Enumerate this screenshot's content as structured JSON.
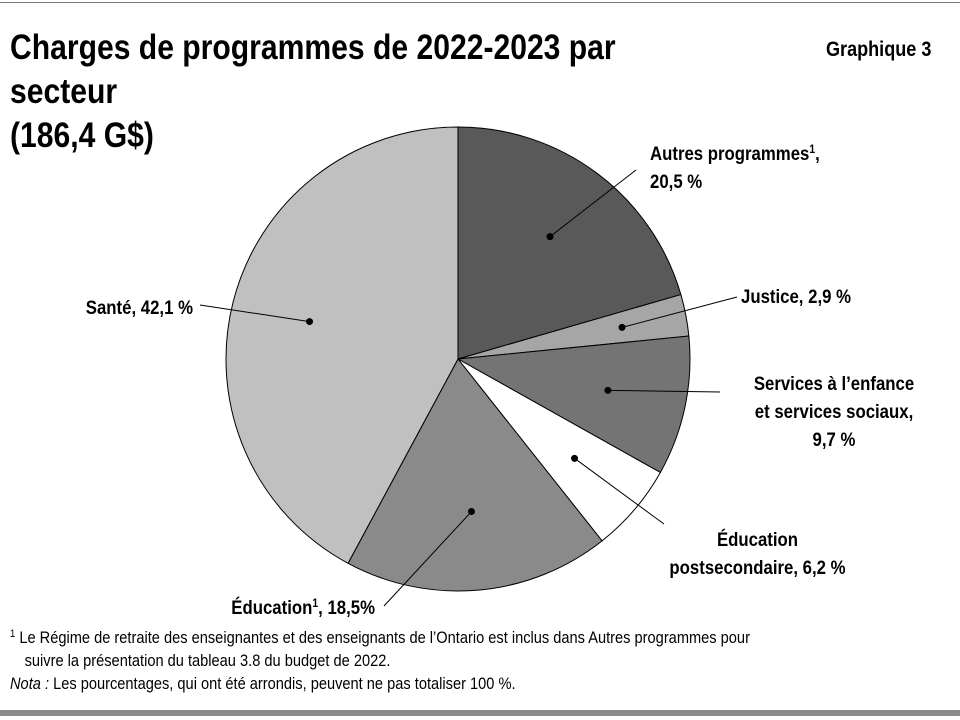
{
  "header": {
    "title_line1": "Charges de programmes de 2022-2023 par secteur",
    "title_line2": "(186,4 G$)",
    "chart_number": "Graphique 3"
  },
  "chart_data": {
    "type": "pie",
    "title": "Charges de programmes de 2022-2023 par secteur (186,4 G$)",
    "unit": "%",
    "slices": [
      {
        "name": "Autres programmes",
        "footnote": "1",
        "value": 20.5,
        "value_label": "20,5 %",
        "color": "#595959"
      },
      {
        "name": "Justice",
        "value": 2.9,
        "value_label": "2,9 %",
        "color": "#a6a6a6"
      },
      {
        "name": "Services à l’enfance et services sociaux",
        "value": 9.7,
        "value_label": "9,7 %",
        "color": "#747474"
      },
      {
        "name": "Éducation postsecondaire",
        "value": 6.2,
        "value_label": "6,2 %",
        "color": "#ffffff"
      },
      {
        "name": "Éducation",
        "footnote": "1",
        "value": 18.5,
        "value_label": "18,5%",
        "color": "#8a8a8a"
      },
      {
        "name": "Santé",
        "value": 42.1,
        "value_label": "42,1 %",
        "color": "#c0c0c0"
      }
    ]
  },
  "labels": {
    "autres_l1": "Autres programmes",
    "autres_sup": "1",
    "autres_l1_end": ",",
    "autres_l2": "20,5 %",
    "justice": "Justice, 2,9 %",
    "services_l1": "Services à l’enfance",
    "services_l2": "et services sociaux,",
    "services_l3": "9,7 %",
    "postsec_l1": "Éducation",
    "postsec_l2": "postsecondaire, 6,2 %",
    "education_name": "Éducation",
    "education_sup": "1",
    "education_value": ", 18,5%",
    "sante": "Santé, 42,1 %"
  },
  "notes": {
    "footnote_marker": "1",
    "footnote_line1": " Le Régime de retraite des enseignantes et des enseignants de l’Ontario est inclus dans Autres programmes pour",
    "footnote_line2": "suivre la présentation du tableau 3.8 du budget de 2022.",
    "nota_label": "Nota :",
    "nota_text": " Les pourcentages, qui ont été arrondis, peuvent ne pas totaliser 100 %."
  }
}
